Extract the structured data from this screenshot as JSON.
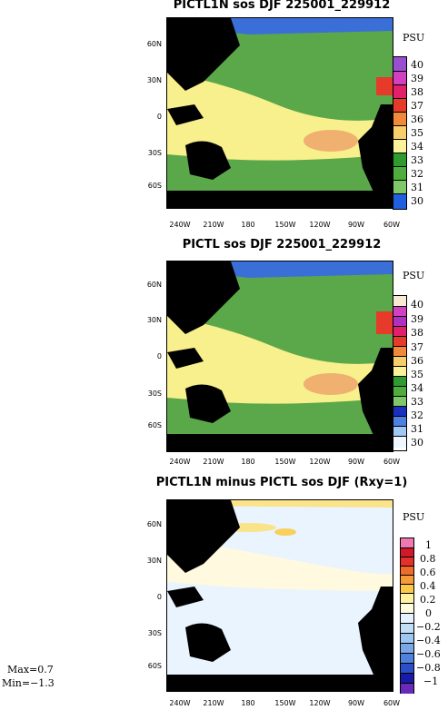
{
  "panels": [
    {
      "title": "PICTL1N sos DJF 225001_229912",
      "unit": "PSU",
      "colorbar_labels": [
        "40",
        "39",
        "38",
        "37",
        "36",
        "35",
        "34",
        "33",
        "32",
        "31",
        "30"
      ],
      "colorbar_colors": [
        "#9a4fd0",
        "#d040c0",
        "#e0206a",
        "#e63a2a",
        "#f08a3a",
        "#f6cf6a",
        "#fbf29a",
        "#2f9a2f",
        "#4fad3e",
        "#7ec86a",
        "#1f5fe0",
        "#8fb8f0",
        "#ffffff"
      ]
    },
    {
      "title": "PICTL sos DJF 225001_229912",
      "unit": "PSU",
      "colorbar_labels": [
        "40",
        "39",
        "38",
        "37",
        "36",
        "35",
        "34",
        "33",
        "32",
        "31",
        "30"
      ],
      "colorbar_colors": [
        "#f6ead2",
        "#d040c0",
        "#b02fc0",
        "#e0206a",
        "#e63a2a",
        "#f08a3a",
        "#f6cf6a",
        "#fbf29a",
        "#2f9a2f",
        "#4fad3e",
        "#7ec86a",
        "#1a2fc0",
        "#4f7fe0",
        "#9fc8f5",
        "#eef6ff"
      ]
    },
    {
      "title": "PICTL1N minus PICTL sos DJF (Rxy=1)",
      "unit": "PSU",
      "colorbar_labels": [
        "1",
        "0.8",
        "0.6",
        "0.4",
        "0.2",
        "0",
        "−0.2",
        "−0.4",
        "−0.6",
        "−0.8",
        "−1"
      ],
      "colorbar_colors": [
        "#f07ab0",
        "#d01a2a",
        "#e4302a",
        "#f06a2a",
        "#f79a3a",
        "#fbc84a",
        "#fff2a0",
        "#fffce0",
        "#e6f2ff",
        "#c2def7",
        "#9ec6f0",
        "#7aa8e6",
        "#4f82dc",
        "#2a4fc8",
        "#1a1aa8",
        "#6a2ab8"
      ]
    }
  ],
  "lat_labels": [
    "60N",
    "30N",
    "0",
    "30S",
    "60S"
  ],
  "lon_labels": [
    "240W",
    "210W",
    "180",
    "150W",
    "120W",
    "90W",
    "60W"
  ],
  "stats": {
    "max": "Max=0.7",
    "min": "Min=−1.3"
  }
}
